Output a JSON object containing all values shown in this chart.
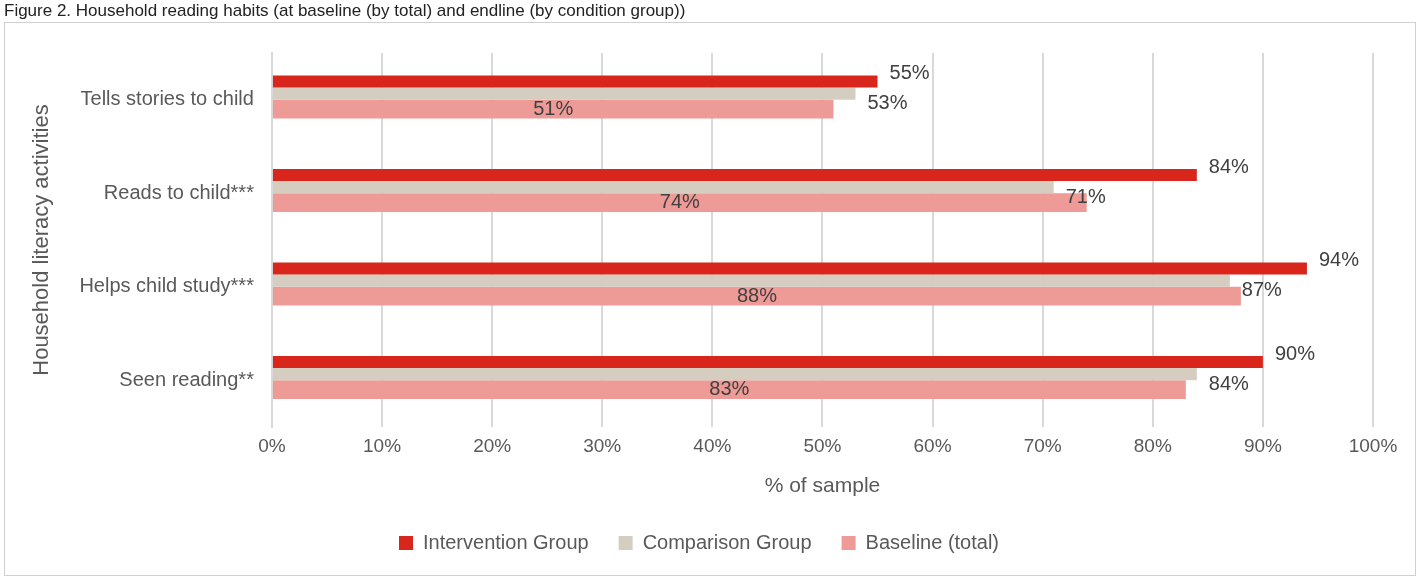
{
  "chart_data": {
    "type": "bar",
    "orientation": "horizontal",
    "title": "Figure 2. Household reading habits (at baseline (by total) and endline (by condition group))",
    "categories": [
      "Tells stories to child",
      "Reads to child***",
      "Helps child study***",
      "Seen reading**"
    ],
    "series": [
      {
        "name": "Intervention Group",
        "color": "#d9261c",
        "values": [
          55,
          84,
          94,
          90
        ],
        "value_labels": [
          "55%",
          "84%",
          "94%",
          "90%"
        ]
      },
      {
        "name": "Comparison Group",
        "color": "#d5cdc0",
        "values": [
          53,
          71,
          87,
          84
        ],
        "value_labels": [
          "53%",
          "71%",
          "87%",
          "84%"
        ]
      },
      {
        "name": "Baseline (total)",
        "color": "#ee9a96",
        "values": [
          51,
          74,
          88,
          83
        ],
        "value_labels": [
          "51%",
          "74%",
          "88%",
          "83%"
        ]
      }
    ],
    "xlim": [
      0,
      100
    ],
    "xticks": [
      {
        "value": 0,
        "label": "0%"
      },
      {
        "value": 10,
        "label": "10%"
      },
      {
        "value": 20,
        "label": "20%"
      },
      {
        "value": 30,
        "label": "30%"
      },
      {
        "value": 40,
        "label": "40%"
      },
      {
        "value": 50,
        "label": "50%"
      },
      {
        "value": 60,
        "label": "60%"
      },
      {
        "value": 70,
        "label": "70%"
      },
      {
        "value": 80,
        "label": "80%"
      },
      {
        "value": 90,
        "label": "90%"
      },
      {
        "value": 100,
        "label": "100%"
      }
    ],
    "xlabel": "% of sample",
    "ylabel": "Household literacy activities",
    "grid": "x",
    "legend": "bottom"
  }
}
